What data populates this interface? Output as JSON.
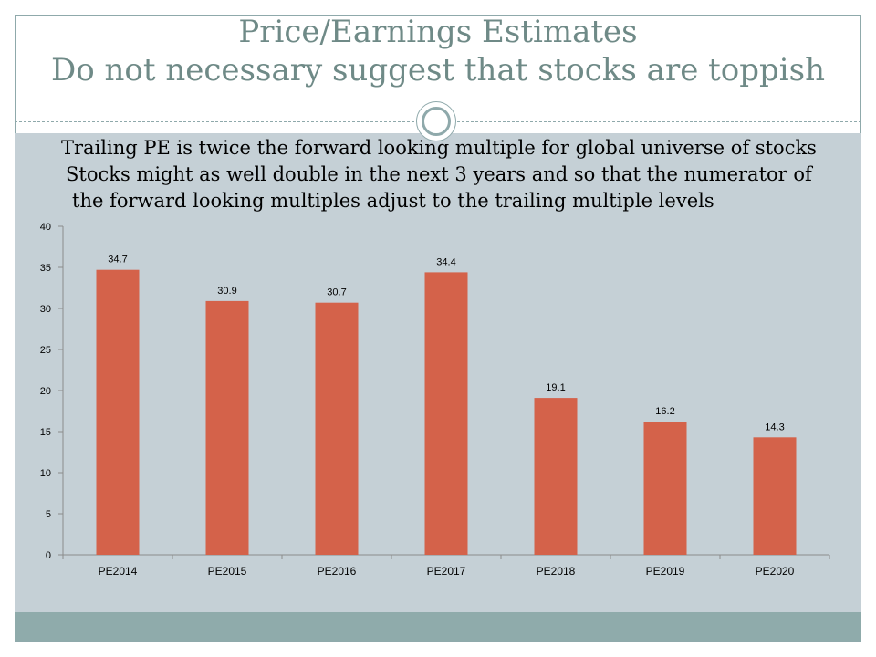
{
  "slide": {
    "title_line1": "Price/Earnings Estimates",
    "title_line2": "Do not necessary suggest that stocks are toppish",
    "body_lines": [
      "Trailing PE is twice the forward looking multiple for global universe of stocks",
      "Stocks  might as well double in the next 3 years  and so that the numerator of",
      "the forward looking multiples adjust to the trailing multiple levels"
    ]
  },
  "colors": {
    "bar": "#d4624a",
    "title": "#6f8a87",
    "panel": "#c5d0d6",
    "footer": "#8fabab"
  },
  "chart_data": {
    "type": "bar",
    "categories": [
      "PE2014",
      "PE2015",
      "PE2016",
      "PE2017",
      "PE2018",
      "PE2019",
      "PE2020"
    ],
    "values": [
      34.7,
      30.9,
      30.7,
      34.4,
      19.1,
      16.2,
      14.3
    ],
    "value_labels": [
      "34.7",
      "30.9",
      "30.7",
      "34.4",
      "19.1",
      "16.2",
      "14.3"
    ],
    "ylim": [
      0,
      40
    ],
    "yticks": [
      0,
      5,
      10,
      15,
      20,
      25,
      30,
      35,
      40
    ],
    "title": "",
    "xlabel": "",
    "ylabel": "",
    "grid": false,
    "legend": "none"
  }
}
